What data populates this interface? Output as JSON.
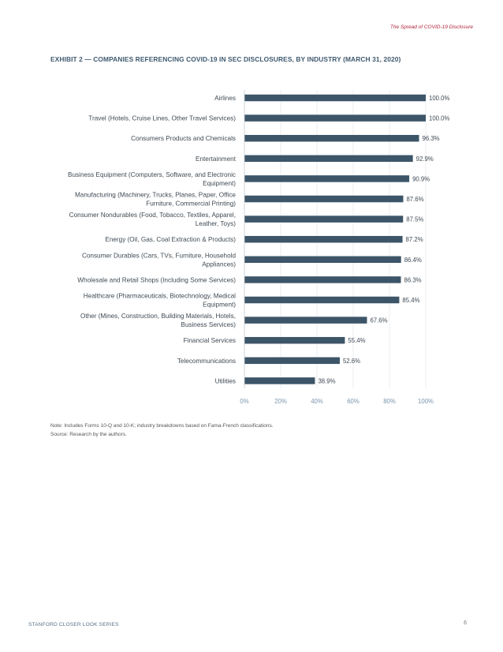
{
  "running_header": "The Spread of COVID-19 Disclosure",
  "exhibit_title": "EXHIBIT 2 — COMPANIES REFERENCING COVID-19 IN SEC DISCLOSURES, BY INDUSTRY (MARCH 31, 2020)",
  "chart_data": {
    "type": "bar",
    "orientation": "horizontal",
    "categories": [
      [
        "Airlines"
      ],
      [
        "Travel (Hotels, Cruise Lines, Other Travel Services)"
      ],
      [
        "Consumers Products and Chemicals"
      ],
      [
        "Entertainment"
      ],
      [
        "Business Equipment (Computers, Software, and Electronic",
        "Equipment)"
      ],
      [
        "Manufacturing (Machinery, Trucks, Planes, Paper, Office",
        "Furniture, Commercial Printing)"
      ],
      [
        "Consumer Nondurables (Food, Tobacco, Textiles, Apparel,",
        "Leather, Toys)"
      ],
      [
        "Energy (Oil, Gas, Coal Extraction & Products)"
      ],
      [
        "Consumer Durables (Cars, TVs, Furniture, Household",
        "Appliances)"
      ],
      [
        "Wholesale and Retail Shops (Including Some Services)"
      ],
      [
        "Healthcare (Pharmaceuticals, Biotechnology, Medical",
        "Equipment)"
      ],
      [
        "Other (Mines, Construction, Building Materials, Hotels,",
        "Business Services)"
      ],
      [
        "Financial Services"
      ],
      [
        "Telecommunications"
      ],
      [
        "Utilities"
      ]
    ],
    "values": [
      100.0,
      100.0,
      96.3,
      92.9,
      90.9,
      87.6,
      87.5,
      87.2,
      86.4,
      86.3,
      85.4,
      67.6,
      55.4,
      52.6,
      38.9
    ],
    "value_labels": [
      "100.0%",
      "100.0%",
      "96.3%",
      "92.9%",
      "90.9%",
      "87.6%",
      "87.5%",
      "87.2%",
      "86.4%",
      "86.3%",
      "85.4%",
      "67.6%",
      "55.4%",
      "52.6%",
      "38.9%"
    ],
    "xticks": [
      0,
      20,
      40,
      60,
      80,
      100
    ],
    "xtick_labels": [
      "0%",
      "20%",
      "40%",
      "60%",
      "80%",
      "100%"
    ],
    "xlim": [
      0,
      100
    ],
    "bar_color": "#3d5568",
    "tick_color": "#7a96ad",
    "title": "",
    "xlabel": "",
    "ylabel": ""
  },
  "notes": {
    "note": "Note: Includes Forms 10-Q and 10-K; industry breakdowns based on Fama-French classifications.",
    "source": "Source: Research by the authors."
  },
  "footer": {
    "series": "STANFORD CLOSER LOOK SERIES",
    "page_number": "6"
  }
}
